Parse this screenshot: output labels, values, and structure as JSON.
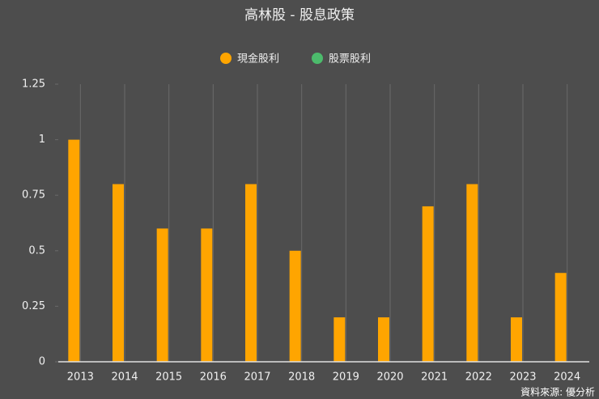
{
  "chart_data": {
    "type": "bar",
    "title": "高林股 - 股息政策",
    "categories": [
      "2013",
      "2014",
      "2015",
      "2016",
      "2017",
      "2018",
      "2019",
      "2020",
      "2021",
      "2022",
      "2023",
      "2024"
    ],
    "series": [
      {
        "name": "現金股利",
        "color": "#ffa500",
        "values": [
          1,
          0.8,
          0.6,
          0.6,
          0.8,
          0.5,
          0.2,
          0.2,
          0.7,
          0.8,
          0.2,
          0.4
        ]
      },
      {
        "name": "股票股利",
        "color": "#4cbb6c",
        "values": [
          0,
          0,
          0,
          0,
          0,
          0,
          0,
          0,
          0,
          0,
          0,
          0
        ]
      }
    ],
    "ylim": [
      0,
      1.25
    ],
    "yticks": [
      0,
      0.25,
      0.5,
      0.75,
      1,
      1.25
    ],
    "source": "資料來源: 優分析"
  }
}
